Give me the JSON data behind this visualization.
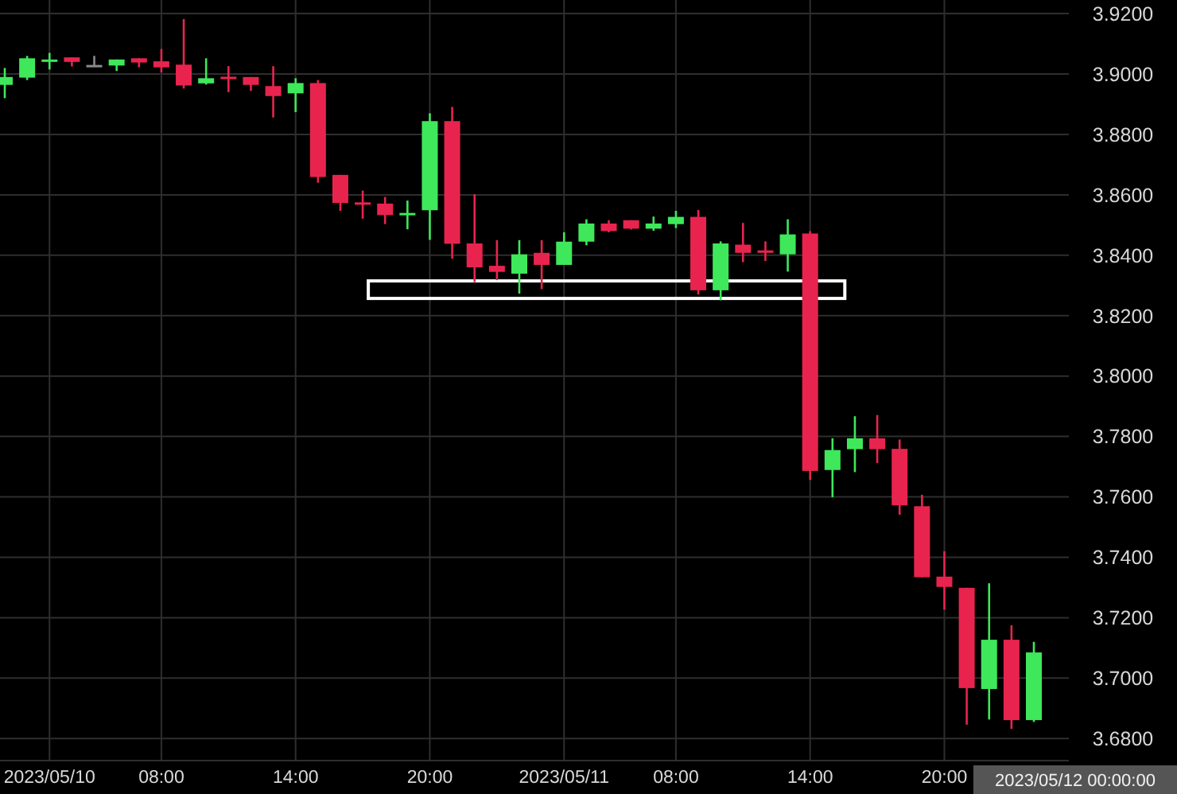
{
  "chart_data": {
    "type": "candlestick",
    "categories": [
      null,
      null,
      "2023/05/10",
      null,
      null,
      null,
      null,
      "08:00",
      null,
      null,
      null,
      null,
      null,
      "14:00",
      null,
      null,
      null,
      null,
      null,
      "20:00",
      null,
      null,
      null,
      null,
      null,
      "2023/05/11",
      null,
      null,
      null,
      null,
      "08:00",
      null,
      null,
      null,
      null,
      null,
      "14:00",
      null,
      null,
      null,
      null,
      null,
      "20:00",
      null,
      null,
      null,
      null
    ],
    "ohlc": [
      [
        3.8964,
        3.902,
        3.892,
        3.899
      ],
      [
        3.8988,
        3.906,
        3.898,
        3.9052
      ],
      [
        3.9045,
        3.907,
        3.9015,
        3.9048
      ],
      [
        3.9055,
        3.9055,
        3.9025,
        3.904
      ],
      [
        3.903,
        3.906,
        3.9028,
        3.903
      ],
      [
        3.9028,
        3.9048,
        3.901,
        3.9048
      ],
      [
        3.9052,
        3.9052,
        3.9022,
        3.9038
      ],
      [
        3.9042,
        3.9083,
        3.9005,
        3.9022
      ],
      [
        3.9031,
        3.9182,
        3.8952,
        3.8962
      ],
      [
        3.8969,
        3.9052,
        3.8965,
        3.8986
      ],
      [
        3.8991,
        3.9026,
        3.894,
        3.8986
      ],
      [
        3.899,
        3.899,
        3.8944,
        3.8964
      ],
      [
        3.896,
        3.9026,
        3.8856,
        3.8927
      ],
      [
        3.8936,
        3.8986,
        3.8874,
        3.897
      ],
      [
        3.897,
        3.898,
        3.864,
        3.8659
      ],
      [
        3.8666,
        3.8666,
        3.8547,
        3.8573
      ],
      [
        3.8575,
        3.8614,
        3.8521,
        3.857
      ],
      [
        3.8571,
        3.8593,
        3.8503,
        3.8533
      ],
      [
        3.8537,
        3.8581,
        3.8486,
        3.854
      ],
      [
        3.8549,
        3.887,
        3.8451,
        3.8844
      ],
      [
        3.8844,
        3.8891,
        3.8389,
        3.8438
      ],
      [
        3.8439,
        3.8602,
        3.8311,
        3.836
      ],
      [
        3.8365,
        3.845,
        3.8318,
        3.8345
      ],
      [
        3.8339,
        3.845,
        3.8273,
        3.8403
      ],
      [
        3.8408,
        3.845,
        3.8288,
        3.8368
      ],
      [
        3.8368,
        3.8476,
        3.8368,
        3.8445
      ],
      [
        3.8445,
        3.8519,
        3.8433,
        3.8505
      ],
      [
        3.8505,
        3.8516,
        3.8476,
        3.848
      ],
      [
        3.8516,
        3.8516,
        3.8485,
        3.8488
      ],
      [
        3.8488,
        3.8528,
        3.8481,
        3.8505
      ],
      [
        3.8503,
        3.8547,
        3.849,
        3.8527
      ],
      [
        3.8527,
        3.855,
        3.827,
        3.8284
      ],
      [
        3.8284,
        3.8446,
        3.8251,
        3.8439
      ],
      [
        3.8435,
        3.8507,
        3.8377,
        3.8408
      ],
      [
        3.8416,
        3.8446,
        3.8381,
        3.8411
      ],
      [
        3.8403,
        3.8519,
        3.8346,
        3.8469
      ],
      [
        3.8472,
        3.848,
        3.7656,
        3.7686
      ],
      [
        3.7689,
        3.7794,
        3.7599,
        3.7755
      ],
      [
        3.7758,
        3.7867,
        3.7682,
        3.7794
      ],
      [
        3.7794,
        3.7871,
        3.7712,
        3.7758
      ],
      [
        3.7759,
        3.779,
        3.7541,
        3.7572
      ],
      [
        3.7569,
        3.7607,
        3.7334,
        3.7334
      ],
      [
        3.7336,
        3.742,
        3.7227,
        3.7302
      ],
      [
        3.7299,
        3.7299,
        3.6846,
        3.6967
      ],
      [
        3.6964,
        3.7314,
        3.6863,
        3.7127
      ],
      [
        3.7127,
        3.7175,
        3.6832,
        3.6861
      ],
      [
        3.6861,
        3.712,
        3.6855,
        3.7085
      ]
    ],
    "colors": [
      "#3ee85a",
      "#3ee85a",
      "#3ee85a",
      "#e8244e",
      "#8a8a8a",
      "#3ee85a",
      "#e8244e",
      "#e8244e",
      "#e8244e",
      "#3ee85a",
      "#e8244e",
      "#e8244e",
      "#e8244e",
      "#3ee85a",
      "#e8244e",
      "#e8244e",
      "#e8244e",
      "#e8244e",
      "#3ee85a",
      "#3ee85a",
      "#e8244e",
      "#e8244e",
      "#e8244e",
      "#3ee85a",
      "#e8244e",
      "#3ee85a",
      "#3ee85a",
      "#e8244e",
      "#e8244e",
      "#3ee85a",
      "#3ee85a",
      "#e8244e",
      "#3ee85a",
      "#e8244e",
      "#e8244e",
      "#3ee85a",
      "#e8244e",
      "#3ee85a",
      "#3ee85a",
      "#e8244e",
      "#e8244e",
      "#e8244e",
      "#e8244e",
      "#e8244e",
      "#3ee85a",
      "#e8244e",
      "#3ee85a"
    ],
    "ylim": [
      3.6727,
      3.9245
    ],
    "yticks": [
      {
        "value": 3.68,
        "label": "3.6800"
      },
      {
        "value": 3.7,
        "label": "3.7000"
      },
      {
        "value": 3.72,
        "label": "3.7200"
      },
      {
        "value": 3.74,
        "label": "3.7400"
      },
      {
        "value": 3.76,
        "label": "3.7600"
      },
      {
        "value": 3.78,
        "label": "3.7800"
      },
      {
        "value": 3.8,
        "label": "3.8000"
      },
      {
        "value": 3.82,
        "label": "3.8200"
      },
      {
        "value": 3.84,
        "label": "3.8400"
      },
      {
        "value": 3.86,
        "label": "3.8600"
      },
      {
        "value": 3.88,
        "label": "3.8800"
      },
      {
        "value": 3.9,
        "label": "3.9000"
      },
      {
        "value": 3.92,
        "label": "3.9200"
      }
    ],
    "grid": true,
    "annotations": [
      "2023/05/12 00:00:00"
    ]
  }
}
